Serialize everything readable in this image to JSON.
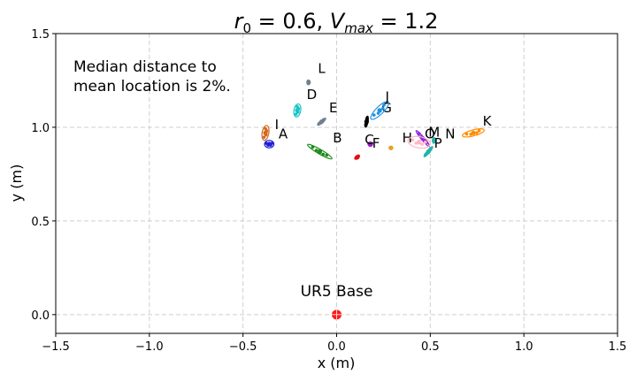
{
  "chart_data": {
    "type": "scatter",
    "title": "r₀ = 0.6, Vₘₐₓ = 1.2",
    "title_parts": {
      "r": "r",
      "r_sub": "0",
      "mid": " = 0.6, ",
      "v": "V",
      "v_sub": "max",
      "end": " = 1.2"
    },
    "xlabel": "x (m)",
    "ylabel": "y (m)",
    "xlim": [
      -1.5,
      1.5
    ],
    "ylim": [
      -0.1,
      1.5
    ],
    "xticks": [
      -1.5,
      -1.0,
      -0.5,
      0.0,
      0.5,
      1.0,
      1.5
    ],
    "xtick_labels": [
      "−1.5",
      "−1.0",
      "−0.5",
      "0.0",
      "0.5",
      "1.0",
      "1.5"
    ],
    "yticks": [
      0.0,
      0.5,
      1.0,
      1.5
    ],
    "ytick_labels": [
      "0.0",
      "0.5",
      "1.0",
      "1.5"
    ],
    "grid": true,
    "annotation": {
      "lines": [
        "Median distance to",
        "mean location is 2%."
      ]
    },
    "base": {
      "label": "UR5 Base",
      "x": 0.0,
      "y": 0.0,
      "color": "#ff1a1a"
    },
    "targets": [
      {
        "label": "A",
        "x": -0.36,
        "y": 0.91,
        "color": "#1f1fd6",
        "cov": {
          "a": 0.025,
          "b": 0.02,
          "angle": 0
        },
        "label_dx": 0.05,
        "label_dy": 0.03
      },
      {
        "label": "B",
        "x": -0.09,
        "y": 0.87,
        "color": "#1a8a1a",
        "cov": {
          "a": 0.075,
          "b": 0.012,
          "angle": -30
        },
        "label_dx": 0.07,
        "label_dy": 0.05
      },
      {
        "label": "C",
        "x": 0.18,
        "y": 0.91,
        "color": "#9b20c8",
        "cov": {
          "a": 0.012,
          "b": 0.012,
          "angle": 0
        },
        "label_dx": -0.03,
        "label_dy": 0.0
      },
      {
        "label": "D",
        "x": -0.21,
        "y": 1.09,
        "color": "#18c4c4",
        "cov": {
          "a": 0.035,
          "b": 0.018,
          "angle": 80
        },
        "label_dx": 0.05,
        "label_dy": 0.06
      },
      {
        "label": "E",
        "x": -0.08,
        "y": 1.03,
        "color": "#708090",
        "cov": {
          "a": 0.028,
          "b": 0.006,
          "angle": 40
        },
        "label_dx": 0.04,
        "label_dy": 0.05
      },
      {
        "label": "F",
        "x": 0.11,
        "y": 0.84,
        "color": "#e01010",
        "cov": {
          "a": 0.015,
          "b": 0.005,
          "angle": 40
        },
        "label_dx": 0.08,
        "label_dy": 0.05
      },
      {
        "label": "G",
        "x": 0.16,
        "y": 1.03,
        "color": "#000000",
        "cov": {
          "a": 0.03,
          "b": 0.005,
          "angle": 80
        },
        "label_dx": 0.08,
        "label_dy": 0.05
      },
      {
        "label": "H",
        "x": 0.29,
        "y": 0.89,
        "color": "#e8a020",
        "cov": {
          "a": 0.005,
          "b": 0.005,
          "angle": 0
        },
        "label_dx": 0.06,
        "label_dy": 0.03
      },
      {
        "label": "I",
        "x": -0.38,
        "y": 0.97,
        "color": "#d2691e",
        "cov": {
          "a": 0.04,
          "b": 0.018,
          "angle": 80
        },
        "label_dx": 0.05,
        "label_dy": 0.02
      },
      {
        "label": "J",
        "x": 0.23,
        "y": 1.09,
        "color": "#2090e0",
        "cov": {
          "a": 0.065,
          "b": 0.02,
          "angle": 45
        },
        "label_dx": 0.03,
        "label_dy": 0.05
      },
      {
        "label": "K",
        "x": 0.73,
        "y": 0.97,
        "color": "#ff8c00",
        "cov": {
          "a": 0.06,
          "b": 0.016,
          "angle": 15
        },
        "label_dx": 0.05,
        "label_dy": 0.04
      },
      {
        "label": "L",
        "x": -0.15,
        "y": 1.24,
        "color": "#708090",
        "cov": {
          "a": 0.012,
          "b": 0.004,
          "angle": 90
        },
        "label_dx": 0.05,
        "label_dy": 0.05
      },
      {
        "label": "M",
        "x": 0.46,
        "y": 0.94,
        "color": "#8a2be2",
        "cov": {
          "a": 0.055,
          "b": 0.008,
          "angle": -50
        },
        "label_dx": 0.03,
        "label_dy": 0.01
      },
      {
        "label": "N",
        "x": 0.52,
        "y": 0.93,
        "color": "#20b2aa",
        "cov": {
          "a": 0.015,
          "b": 0.008,
          "angle": 90
        },
        "label_dx": 0.06,
        "label_dy": 0.01
      },
      {
        "label": "O",
        "x": 0.44,
        "y": 0.92,
        "color": "#ffb6c1",
        "cov": {
          "a": 0.06,
          "b": 0.03,
          "angle": -10
        },
        "label_dx": 0.03,
        "label_dy": 0.02
      },
      {
        "label": "P",
        "x": 0.49,
        "y": 0.87,
        "color": "#20b2aa",
        "cov": {
          "a": 0.035,
          "b": 0.006,
          "angle": 50
        },
        "label_dx": 0.03,
        "label_dy": 0.02
      }
    ]
  }
}
